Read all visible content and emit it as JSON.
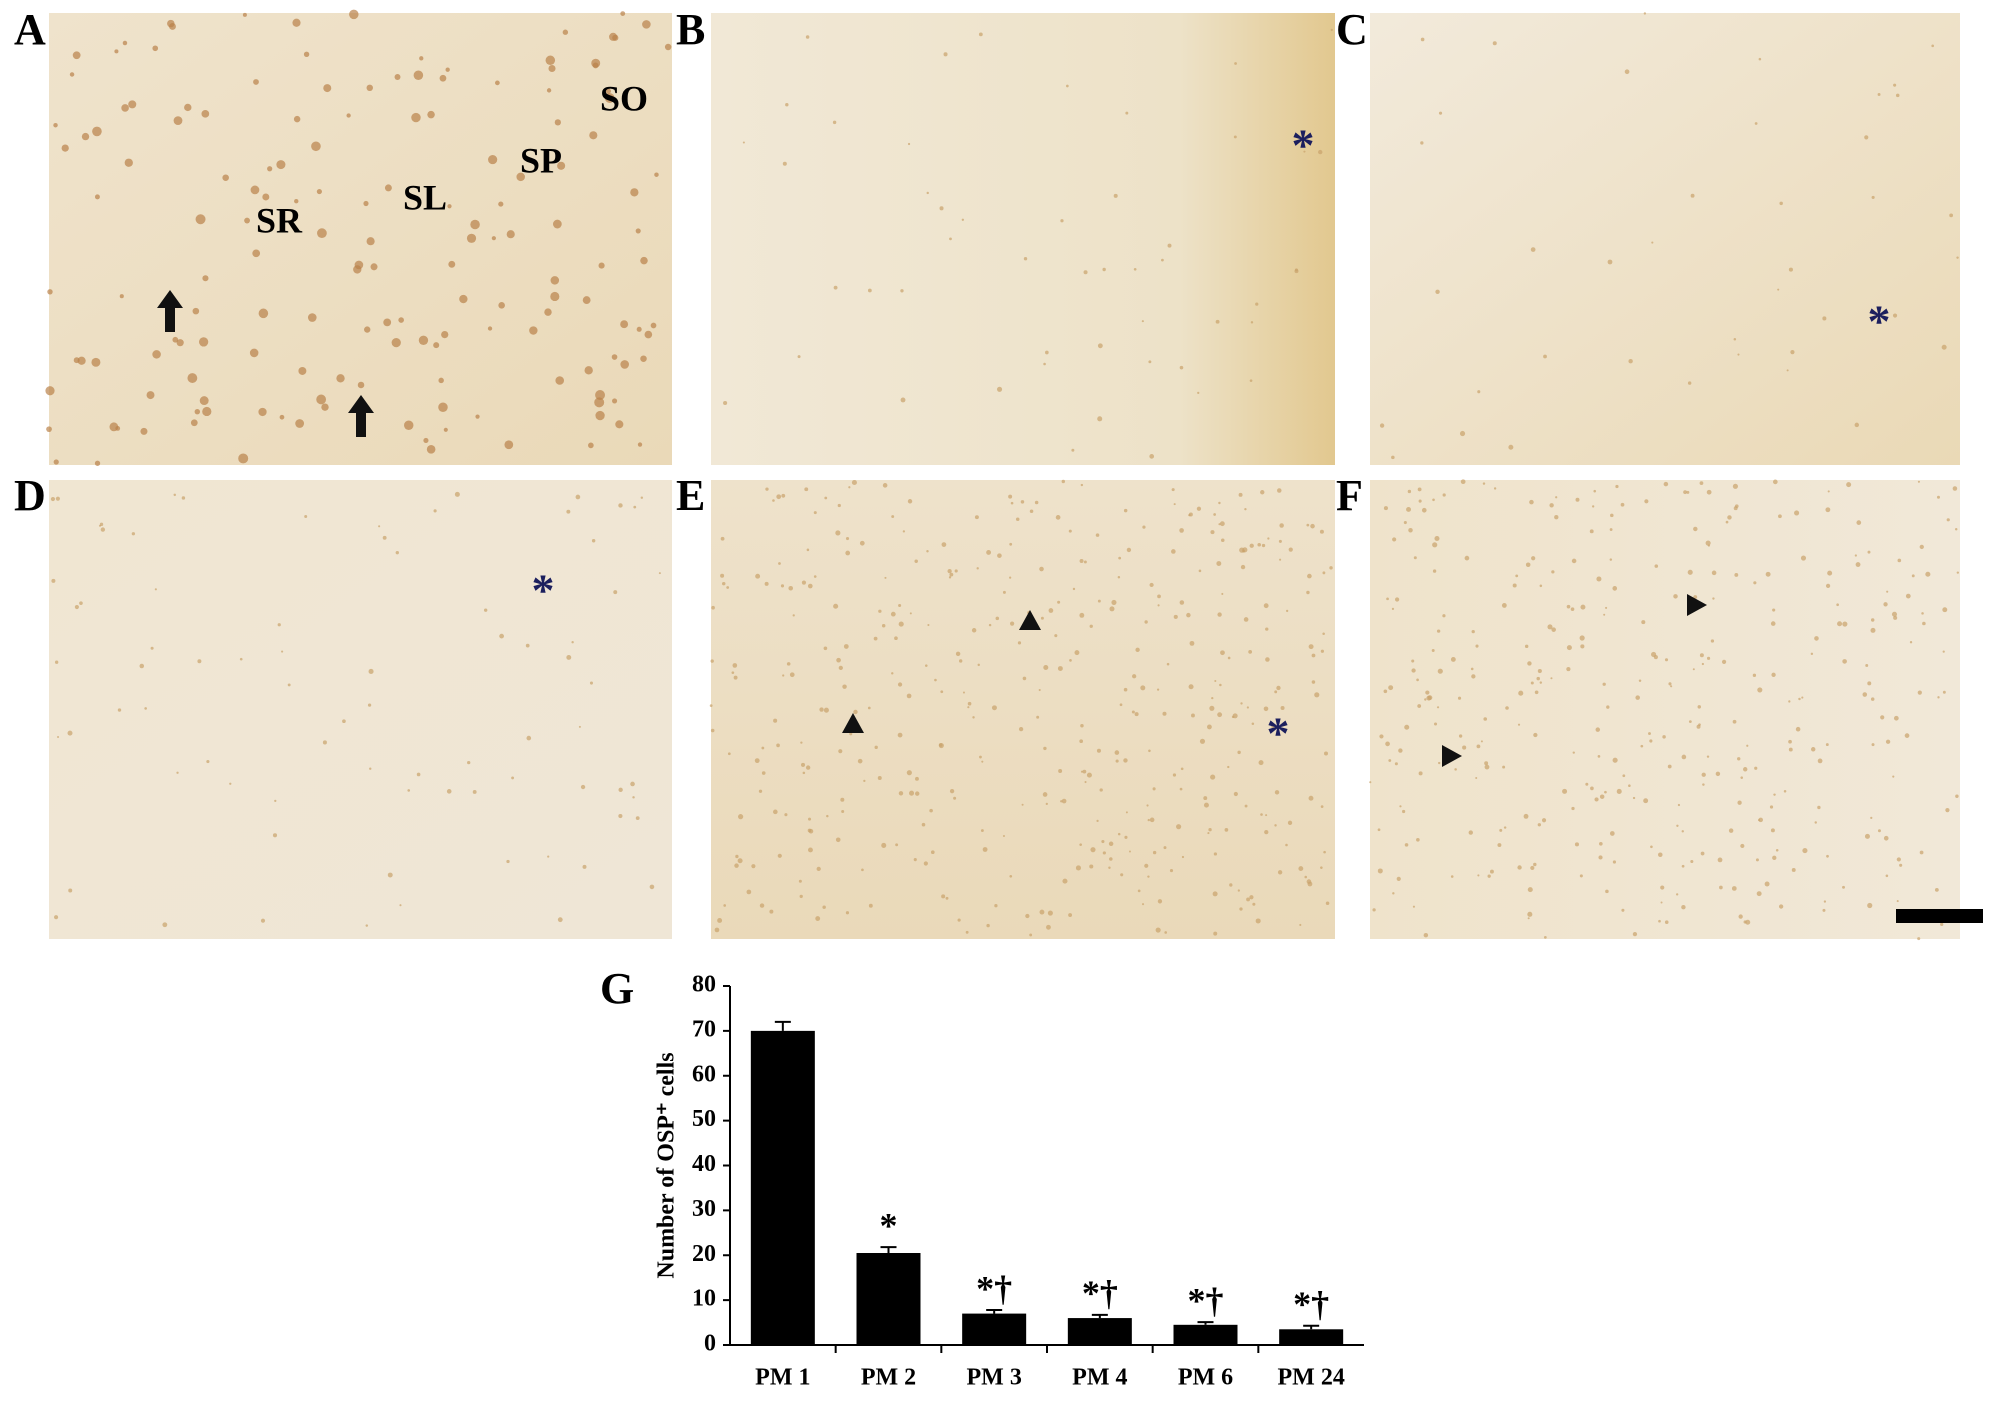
{
  "panels": [
    {
      "label": "A",
      "texts": [
        "SR",
        "SL",
        "SP",
        "SO"
      ]
    },
    {
      "label": "B",
      "texts": [
        "*"
      ]
    },
    {
      "label": "C",
      "texts": [
        "*"
      ]
    },
    {
      "label": "D",
      "texts": [
        "*"
      ]
    },
    {
      "label": "E",
      "texts": [
        "*"
      ]
    },
    {
      "label": "F"
    }
  ],
  "chart_label": "G",
  "chart_data": {
    "type": "bar",
    "y_label": "Number of OSP⁺ cells",
    "categories": [
      "PM 1",
      "PM 2",
      "PM 3",
      "PM 4",
      "PM 6",
      "PM 24"
    ],
    "values": [
      70,
      20.5,
      7,
      6,
      4.5,
      3.5
    ],
    "errors": [
      2,
      1.3,
      0.8,
      0.7,
      0.6,
      0.8
    ],
    "annotations": [
      null,
      "*",
      "*†",
      "*†",
      "*†",
      "*†"
    ],
    "color": "#000000",
    "ylim": [
      0,
      80
    ],
    "yticks": [
      0,
      10,
      20,
      30,
      40,
      50,
      60,
      70,
      80
    ]
  }
}
